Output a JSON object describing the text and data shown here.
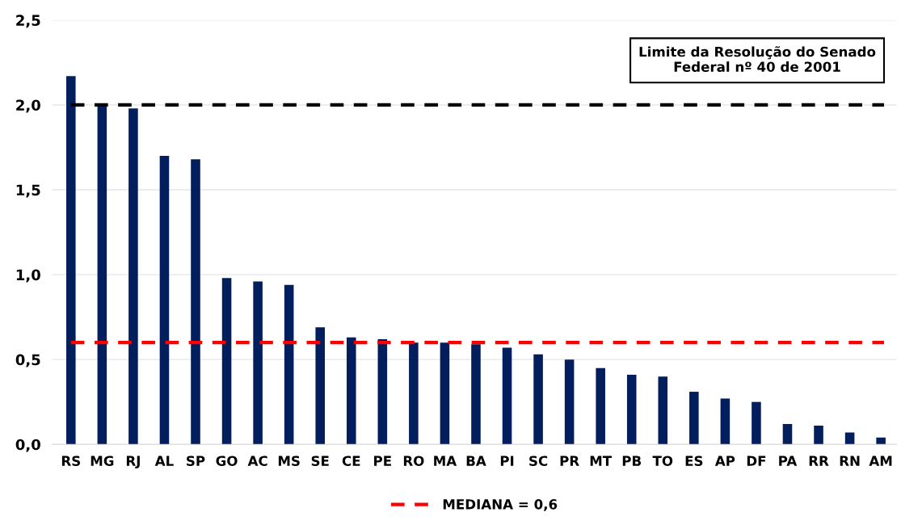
{
  "chart_data": {
    "type": "bar",
    "categories": [
      "RS",
      "MG",
      "RJ",
      "AL",
      "SP",
      "GO",
      "AC",
      "MS",
      "SE",
      "CE",
      "PE",
      "RO",
      "MA",
      "BA",
      "PI",
      "SC",
      "PR",
      "MT",
      "PB",
      "TO",
      "ES",
      "AP",
      "DF",
      "PA",
      "RR",
      "RN",
      "AM"
    ],
    "values": [
      2.17,
      1.99,
      1.98,
      1.7,
      1.68,
      0.98,
      0.96,
      0.94,
      0.69,
      0.63,
      0.62,
      0.6,
      0.6,
      0.59,
      0.57,
      0.53,
      0.5,
      0.45,
      0.41,
      0.4,
      0.31,
      0.27,
      0.25,
      0.12,
      0.11,
      0.07,
      0.04
    ],
    "color": "#021e5c",
    "ylim": [
      0,
      2.5
    ],
    "yticks": [
      {
        "value": 0,
        "label": "0,0"
      },
      {
        "value": 0.5,
        "label": "0,5"
      },
      {
        "value": 1,
        "label": "1,0"
      },
      {
        "value": 1.5,
        "label": "1,5"
      },
      {
        "value": 2,
        "label": "2,0"
      },
      {
        "value": 2.5,
        "label": "2,5"
      }
    ],
    "grid": "y",
    "ref_lines": [
      {
        "axis": "y",
        "value": 2,
        "color": "#000000",
        "line_style": "dashed"
      },
      {
        "axis": "y",
        "value": 0.6,
        "label": "MEDIANA = 0,6",
        "color": "#ff0000",
        "line_style": "dashed"
      }
    ],
    "annotations": [
      "Limite da Resolução do Senado\nFederal nº 40 de 2001"
    ],
    "legend": "bottom"
  }
}
